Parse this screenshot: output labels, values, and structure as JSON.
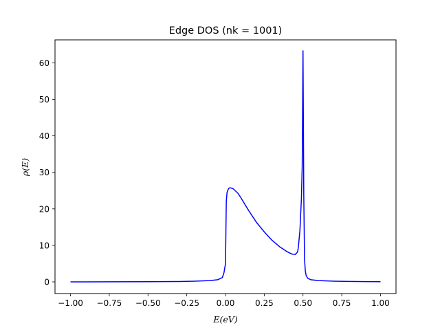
{
  "chart_data": {
    "type": "line",
    "title": "Edge DOS (nk = 1001)",
    "xlabel": "E(eV)",
    "ylabel": "ρ(E)",
    "xlim": [
      -1.1,
      1.1
    ],
    "ylim": [
      -3.2,
      66.3
    ],
    "xticks": [
      -1.0,
      -0.75,
      -0.5,
      -0.25,
      0.0,
      0.25,
      0.5,
      0.75,
      1.0
    ],
    "xtick_labels": [
      "−1.00",
      "−0.75",
      "−0.50",
      "−0.25",
      "0.00",
      "0.25",
      "0.50",
      "0.75",
      "1.00"
    ],
    "yticks": [
      0,
      10,
      20,
      30,
      40,
      50,
      60
    ],
    "ytick_labels": [
      "0",
      "10",
      "20",
      "30",
      "40",
      "50",
      "60"
    ],
    "grid": false,
    "series": [
      {
        "color": "#0000ff",
        "points": [
          [
            -1.0,
            0.0
          ],
          [
            -0.75,
            0.02
          ],
          [
            -0.5,
            0.05
          ],
          [
            -0.3,
            0.1
          ],
          [
            -0.2,
            0.2
          ],
          [
            -0.1,
            0.35
          ],
          [
            -0.05,
            0.6
          ],
          [
            -0.02,
            1.2
          ],
          [
            -0.01,
            2.5
          ],
          [
            0.0,
            5.0
          ],
          [
            0.005,
            22.0
          ],
          [
            0.01,
            24.5
          ],
          [
            0.02,
            25.6
          ],
          [
            0.03,
            25.8
          ],
          [
            0.05,
            25.5
          ],
          [
            0.08,
            24.3
          ],
          [
            0.1,
            23.0
          ],
          [
            0.15,
            19.5
          ],
          [
            0.2,
            16.3
          ],
          [
            0.25,
            13.7
          ],
          [
            0.3,
            11.4
          ],
          [
            0.35,
            9.6
          ],
          [
            0.4,
            8.2
          ],
          [
            0.43,
            7.6
          ],
          [
            0.45,
            7.5
          ],
          [
            0.465,
            8.2
          ],
          [
            0.47,
            9.5
          ],
          [
            0.48,
            14.0
          ],
          [
            0.49,
            23.0
          ],
          [
            0.495,
            32.0
          ],
          [
            0.5,
            63.3
          ],
          [
            0.505,
            24.0
          ],
          [
            0.51,
            6.0
          ],
          [
            0.515,
            3.0
          ],
          [
            0.52,
            1.8
          ],
          [
            0.53,
            1.0
          ],
          [
            0.55,
            0.6
          ],
          [
            0.6,
            0.35
          ],
          [
            0.7,
            0.2
          ],
          [
            0.8,
            0.12
          ],
          [
            0.9,
            0.08
          ],
          [
            1.0,
            0.05
          ]
        ]
      }
    ]
  }
}
